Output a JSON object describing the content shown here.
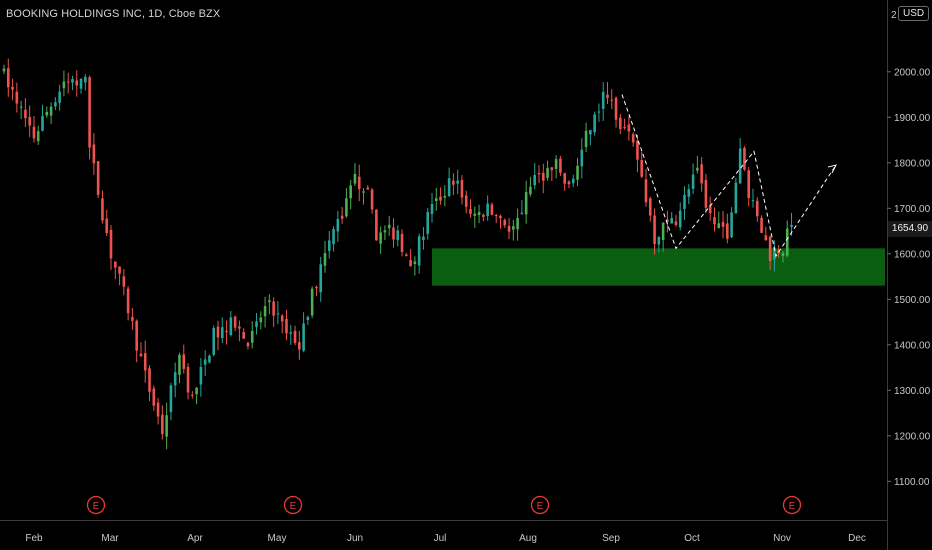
{
  "header": {
    "title": "BOOKING HOLDINGS INC, 1D, Cboe BZX",
    "currency_label": "USD",
    "corner_left": "2",
    "corner_right": "0"
  },
  "colors": {
    "background": "#000000",
    "up": "#26a69a",
    "up_bright": "#4caf50",
    "down": "#ef5350",
    "zone": "#0b5d12",
    "axis_text": "#c8c8c8",
    "earnings": "#e53935",
    "projection": "#ffffff"
  },
  "chart_data": {
    "type": "candlestick",
    "title": "BOOKING HOLDINGS INC, 1D, Cboe BZX",
    "ylim": [
      1015,
      2105
    ],
    "y_ticks": [
      1100,
      1200,
      1300,
      1400,
      1500,
      1600,
      1700,
      1800,
      1900,
      2000
    ],
    "y_tick_labels": [
      "1100.00",
      "1200.00",
      "1300.00",
      "1400.00",
      "1500.00",
      "1600.00",
      "1700.00",
      "1800.00",
      "1900.00",
      "2000.00"
    ],
    "x_labels": [
      "Feb",
      "Mar",
      "Apr",
      "May",
      "Jun",
      "Jul",
      "Aug",
      "Sep",
      "Oct",
      "Nov",
      "Dec"
    ],
    "grid": false,
    "last_price": "1654.90",
    "support_zone": {
      "from_price": 1530,
      "to_price": 1612,
      "starts_at": "Jul"
    },
    "earnings_markers": [
      {
        "label": "E",
        "near": "Feb"
      },
      {
        "label": "E",
        "near": "May"
      },
      {
        "label": "E",
        "near": "Aug"
      },
      {
        "label": "E",
        "near": "Nov"
      }
    ],
    "projection_path_prices": [
      1950,
      1612,
      1825,
      1595,
      1795
    ],
    "series": [
      {
        "name": "",
        "anchors": [
          [
            0,
            2010
          ],
          [
            8,
            1860
          ],
          [
            15,
            1980
          ],
          [
            20,
            1970
          ],
          [
            21,
            1830
          ],
          [
            26,
            1600
          ],
          [
            30,
            1480
          ],
          [
            34,
            1330
          ],
          [
            38,
            1210
          ],
          [
            42,
            1380
          ],
          [
            45,
            1280
          ],
          [
            50,
            1420
          ],
          [
            55,
            1450
          ],
          [
            58,
            1400
          ],
          [
            63,
            1500
          ],
          [
            67,
            1420
          ],
          [
            70,
            1400
          ],
          [
            72,
            1480
          ],
          [
            78,
            1650
          ],
          [
            83,
            1760
          ],
          [
            86,
            1750
          ],
          [
            88,
            1640
          ],
          [
            93,
            1650
          ],
          [
            96,
            1560
          ],
          [
            100,
            1680
          ],
          [
            106,
            1770
          ],
          [
            110,
            1680
          ],
          [
            115,
            1700
          ],
          [
            120,
            1650
          ],
          [
            125,
            1770
          ],
          [
            130,
            1790
          ],
          [
            133,
            1740
          ],
          [
            138,
            1880
          ],
          [
            142,
            1960
          ],
          [
            145,
            1890
          ],
          [
            149,
            1810
          ],
          [
            153,
            1640
          ],
          [
            158,
            1680
          ],
          [
            163,
            1780
          ],
          [
            166,
            1680
          ],
          [
            170,
            1650
          ],
          [
            173,
            1820
          ],
          [
            176,
            1700
          ],
          [
            180,
            1600
          ],
          [
            183,
            1620
          ],
          [
            184,
            1655
          ]
        ]
      }
    ]
  }
}
